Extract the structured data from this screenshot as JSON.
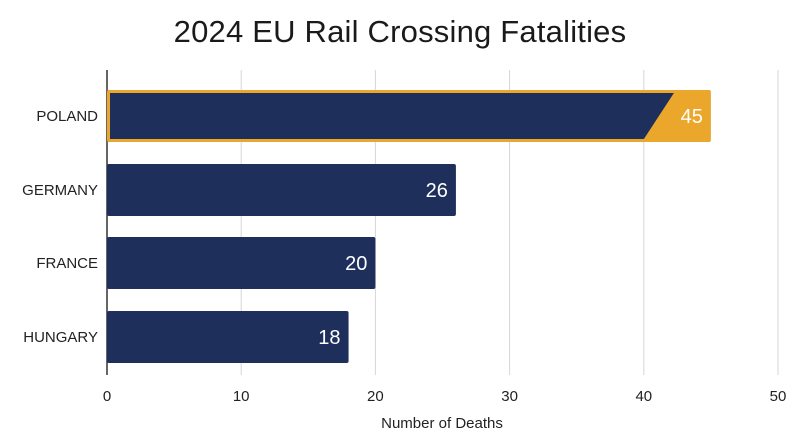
{
  "chart_data": {
    "type": "bar",
    "orientation": "horizontal",
    "title": "2024 EU Rail Crossing Fatalities",
    "xlabel": "Number of Deaths",
    "ylabel": "",
    "categories": [
      "POLAND",
      "GERMANY",
      "FRANCE",
      "HUNGARY"
    ],
    "values": [
      45,
      26,
      20,
      18
    ],
    "xlim": [
      0,
      50
    ],
    "xticks": [
      0,
      10,
      20,
      30,
      40,
      50
    ],
    "grid": true,
    "highlight_category": "POLAND",
    "colors": {
      "bar": "#1f2f5c",
      "highlight": "#eba72b",
      "grid": "#d6d6d6",
      "axis": "#333333"
    }
  }
}
